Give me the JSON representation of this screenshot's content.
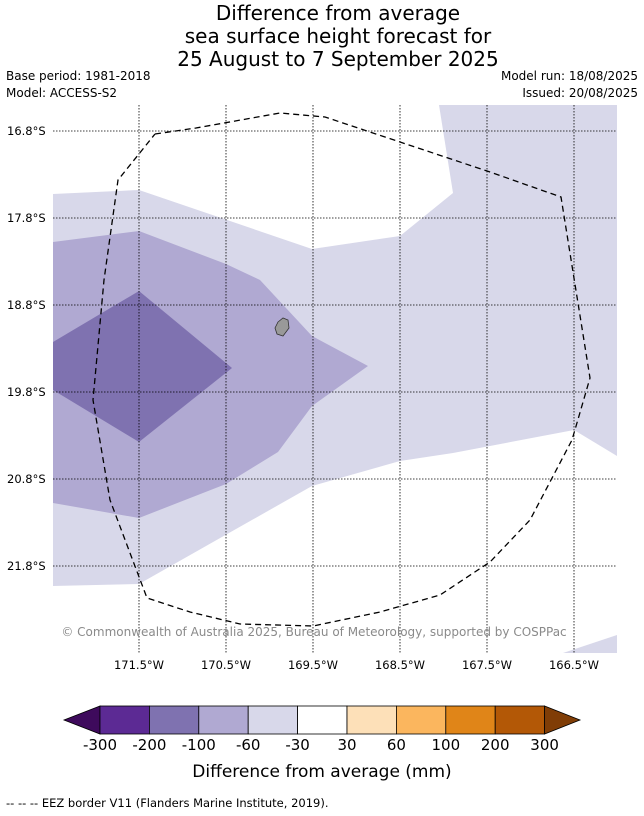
{
  "title": {
    "line1": "Difference from average",
    "line2": "sea surface height forecast for",
    "line3": "25 August to 7 September 2025"
  },
  "meta": {
    "base_period": "Base period: 1981-2018",
    "model": "Model: ACCESS-S2",
    "model_run": "Model run: 18/08/2025",
    "issued": "Issued: 20/08/2025"
  },
  "map": {
    "lat_labels": [
      "16.8°S",
      "17.8°S",
      "18.8°S",
      "19.8°S",
      "20.8°S",
      "21.8°S"
    ],
    "lon_labels": [
      "171.5°W",
      "170.5°W",
      "169.5°W",
      "168.5°W",
      "167.5°W",
      "166.5°W"
    ],
    "copyright": "© Commonwealth of Australia 2025, Bureau of Meteorology, supported by COSPPac",
    "colors": {
      "anom_-200_-100": "#7f72b0",
      "anom_-100_-60": "#b0a9d2",
      "anom_-60_-30": "#d8d8ea",
      "land": "#999999"
    }
  },
  "colorbar": {
    "ticks": [
      "-300",
      "-200",
      "-100",
      "-60",
      "-30",
      "30",
      "60",
      "100",
      "200",
      "300"
    ],
    "colors": [
      "#3e0a5c",
      "#5c2a94",
      "#7f72b0",
      "#b0a9d2",
      "#d8d8ea",
      "#ffffff",
      "#fde0b8",
      "#fbb65e",
      "#e08518",
      "#b35806",
      "#803d06"
    ],
    "label": "Difference from average (mm)"
  },
  "footnote": "--  --  -- EEZ border V11 (Flanders Marine Institute, 2019)."
}
